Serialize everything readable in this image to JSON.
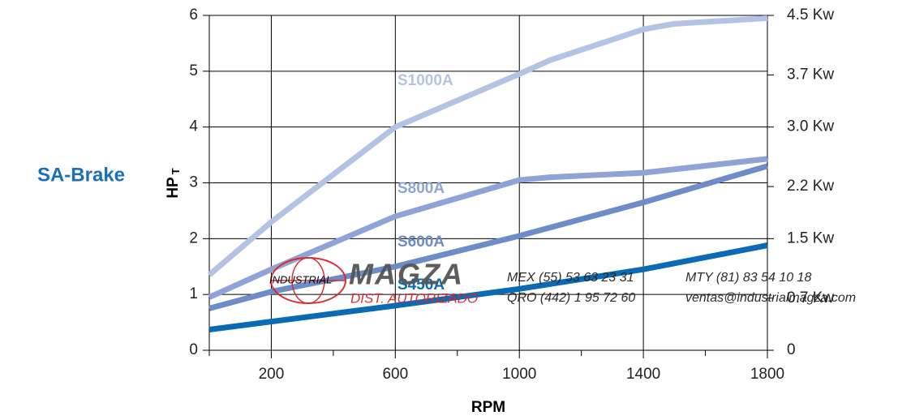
{
  "chart_data": {
    "type": "line",
    "title": "SA-Brake",
    "x_label": "RPM",
    "y_label": "HP",
    "y_label_sub": "T",
    "xlim": [
      0,
      1800
    ],
    "xticks": [
      200,
      600,
      1000,
      1400,
      1800
    ],
    "xminor": [
      0,
      400,
      800,
      1200,
      1600
    ],
    "ylim": [
      0,
      6
    ],
    "yticks": [
      0,
      1,
      2,
      3,
      4,
      5,
      6
    ],
    "y2lim": [
      0,
      4.5
    ],
    "y2ticks": [
      0,
      {
        "value": 0.7,
        "label": "0.7 Kw"
      },
      {
        "value": 1.5,
        "label": "1.5 Kw"
      },
      {
        "value": 2.2,
        "label": "2.2 Kw"
      },
      {
        "value": 3.0,
        "label": "3.0 Kw"
      },
      {
        "value": 3.7,
        "label": "3.7 Kw"
      },
      {
        "value": 4.5,
        "label": "4.5 Kw"
      }
    ],
    "grid": true,
    "series": [
      {
        "name": "S1000A",
        "color": "#b4c3e3",
        "x": [
          0,
          200,
          600,
          1000,
          1100,
          1400,
          1500,
          1800
        ],
        "values": [
          1.35,
          2.3,
          4.0,
          4.95,
          5.2,
          5.75,
          5.85,
          5.95
        ]
      },
      {
        "name": "S800A",
        "color": "#8fa3d6",
        "x": [
          0,
          200,
          600,
          1000,
          1100,
          1400,
          1800
        ],
        "values": [
          0.95,
          1.45,
          2.4,
          3.05,
          3.1,
          3.18,
          3.43
        ]
      },
      {
        "name": "S600A",
        "color": "#6e8cc8",
        "x": [
          0,
          200,
          600,
          1000,
          1400,
          1800
        ],
        "values": [
          0.75,
          1.05,
          1.5,
          2.05,
          2.65,
          3.3
        ]
      },
      {
        "name": "S450A",
        "color": "#0a6ab4",
        "x": [
          0,
          600,
          1000,
          1400,
          1800
        ],
        "values": [
          0.37,
          0.8,
          1.1,
          1.45,
          1.88
        ]
      }
    ],
    "watermark": {
      "brand": "MAGZA",
      "tag": "INDUSTRIAL",
      "sub": "DIST. AUTORIZADO",
      "contacts": [
        "MEX (55) 53 63 23 31",
        "MTY (81) 83 54 10 18",
        "QRO (442) 1 95 72 60",
        "ventas@industrialmagza.com"
      ]
    }
  }
}
